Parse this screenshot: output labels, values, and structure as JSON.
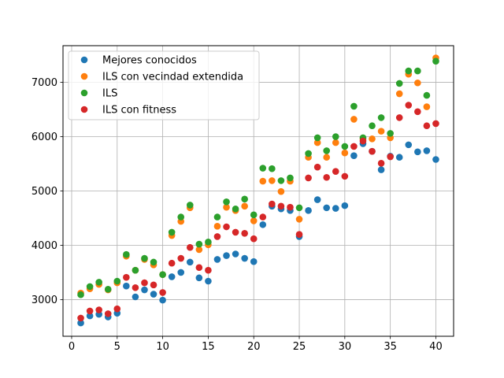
{
  "chart_data": {
    "type": "scatter",
    "title": "",
    "xlabel": "",
    "ylabel": "",
    "xlim": [
      -0.95,
      41.95
    ],
    "ylim": [
      2325,
      7675
    ],
    "xticks": [
      0,
      5,
      10,
      15,
      20,
      25,
      30,
      35,
      40
    ],
    "yticks": [
      3000,
      4000,
      5000,
      6000,
      7000
    ],
    "grid": true,
    "legend_position": "upper-left",
    "x": [
      1,
      2,
      3,
      4,
      5,
      6,
      7,
      8,
      9,
      10,
      11,
      12,
      13,
      14,
      15,
      16,
      17,
      18,
      19,
      20,
      21,
      22,
      23,
      24,
      25,
      26,
      27,
      28,
      29,
      30,
      31,
      32,
      33,
      34,
      35,
      36,
      37,
      38,
      39,
      40
    ],
    "series": [
      {
        "name": "Mejores conocidos",
        "color": "#1f77b4",
        "values": [
          2570,
          2700,
          2730,
          2680,
          2750,
          3250,
          3050,
          3180,
          3100,
          2990,
          3420,
          3500,
          3690,
          3400,
          3340,
          3740,
          3810,
          3840,
          3760,
          3700,
          4380,
          4720,
          4670,
          4640,
          4160,
          4640,
          4840,
          4690,
          4680,
          4730,
          5650,
          5870,
          5730,
          5390,
          5640,
          5620,
          5850,
          5720,
          5740,
          5580
        ]
      },
      {
        "name": "ILS con vecindad extendida",
        "color": "#ff7f0e",
        "values": [
          3120,
          3200,
          3280,
          3180,
          3310,
          3800,
          3540,
          3740,
          3640,
          3460,
          4180,
          4440,
          4690,
          3920,
          4010,
          4350,
          4700,
          4640,
          4720,
          4450,
          5180,
          5190,
          4990,
          5180,
          4480,
          5620,
          5890,
          5620,
          5890,
          5700,
          6320,
          5960,
          5960,
          6100,
          5980,
          6790,
          7150,
          6990,
          6550,
          7450
        ]
      },
      {
        "name": "ILS",
        "color": "#2ca02c",
        "values": [
          3090,
          3240,
          3320,
          3190,
          3340,
          3830,
          3540,
          3760,
          3690,
          3460,
          4240,
          4520,
          4740,
          4020,
          4060,
          4520,
          4800,
          4670,
          4850,
          4560,
          5420,
          5410,
          5190,
          5240,
          4690,
          5690,
          5980,
          5740,
          6000,
          5820,
          6560,
          5980,
          6200,
          6350,
          6060,
          6980,
          7210,
          7210,
          6760,
          7390
        ]
      },
      {
        "name": "ILS con fitness",
        "color": "#d62728",
        "values": [
          2660,
          2790,
          2810,
          2740,
          2830,
          3410,
          3220,
          3310,
          3270,
          3130,
          3670,
          3760,
          3960,
          3590,
          3540,
          4160,
          4340,
          4240,
          4220,
          4120,
          4520,
          4760,
          4720,
          4700,
          4200,
          5240,
          5440,
          5250,
          5360,
          5270,
          5820,
          5920,
          5730,
          5510,
          5630,
          6350,
          6580,
          6460,
          6200,
          6240
        ]
      }
    ]
  }
}
